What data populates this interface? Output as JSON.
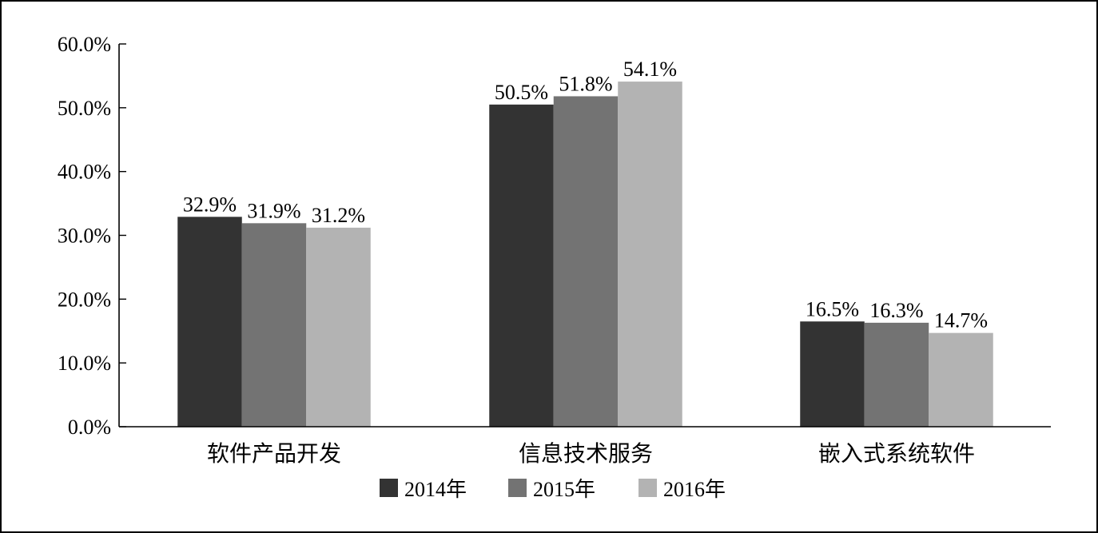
{
  "chart_data": {
    "type": "bar",
    "title": "",
    "xlabel": "",
    "ylabel": "",
    "categories": [
      "软件产品开发",
      "信息技术服务",
      "嵌入式系统软件"
    ],
    "series": [
      {
        "name": "2014年",
        "values": [
          32.9,
          50.5,
          16.5
        ],
        "labels": [
          "32.9%",
          "50.5%",
          "16.5%"
        ],
        "color": "#333333"
      },
      {
        "name": "2015年",
        "values": [
          31.9,
          51.8,
          16.3
        ],
        "labels": [
          "31.9%",
          "51.8%",
          "16.3%"
        ],
        "color": "#737373"
      },
      {
        "name": "2016年",
        "values": [
          31.2,
          54.1,
          14.7
        ],
        "labels": [
          "31.2%",
          "54.1%",
          "14.7%"
        ],
        "color": "#b3b3b3"
      }
    ],
    "ylim": [
      0,
      60
    ],
    "yticks": [
      0,
      10,
      20,
      30,
      40,
      50,
      60
    ],
    "ytick_labels": [
      "0.0%",
      "10.0%",
      "20.0%",
      "30.0%",
      "40.0%",
      "50.0%",
      "60.0%"
    ],
    "grid": false,
    "legend_position": "bottom-center"
  }
}
